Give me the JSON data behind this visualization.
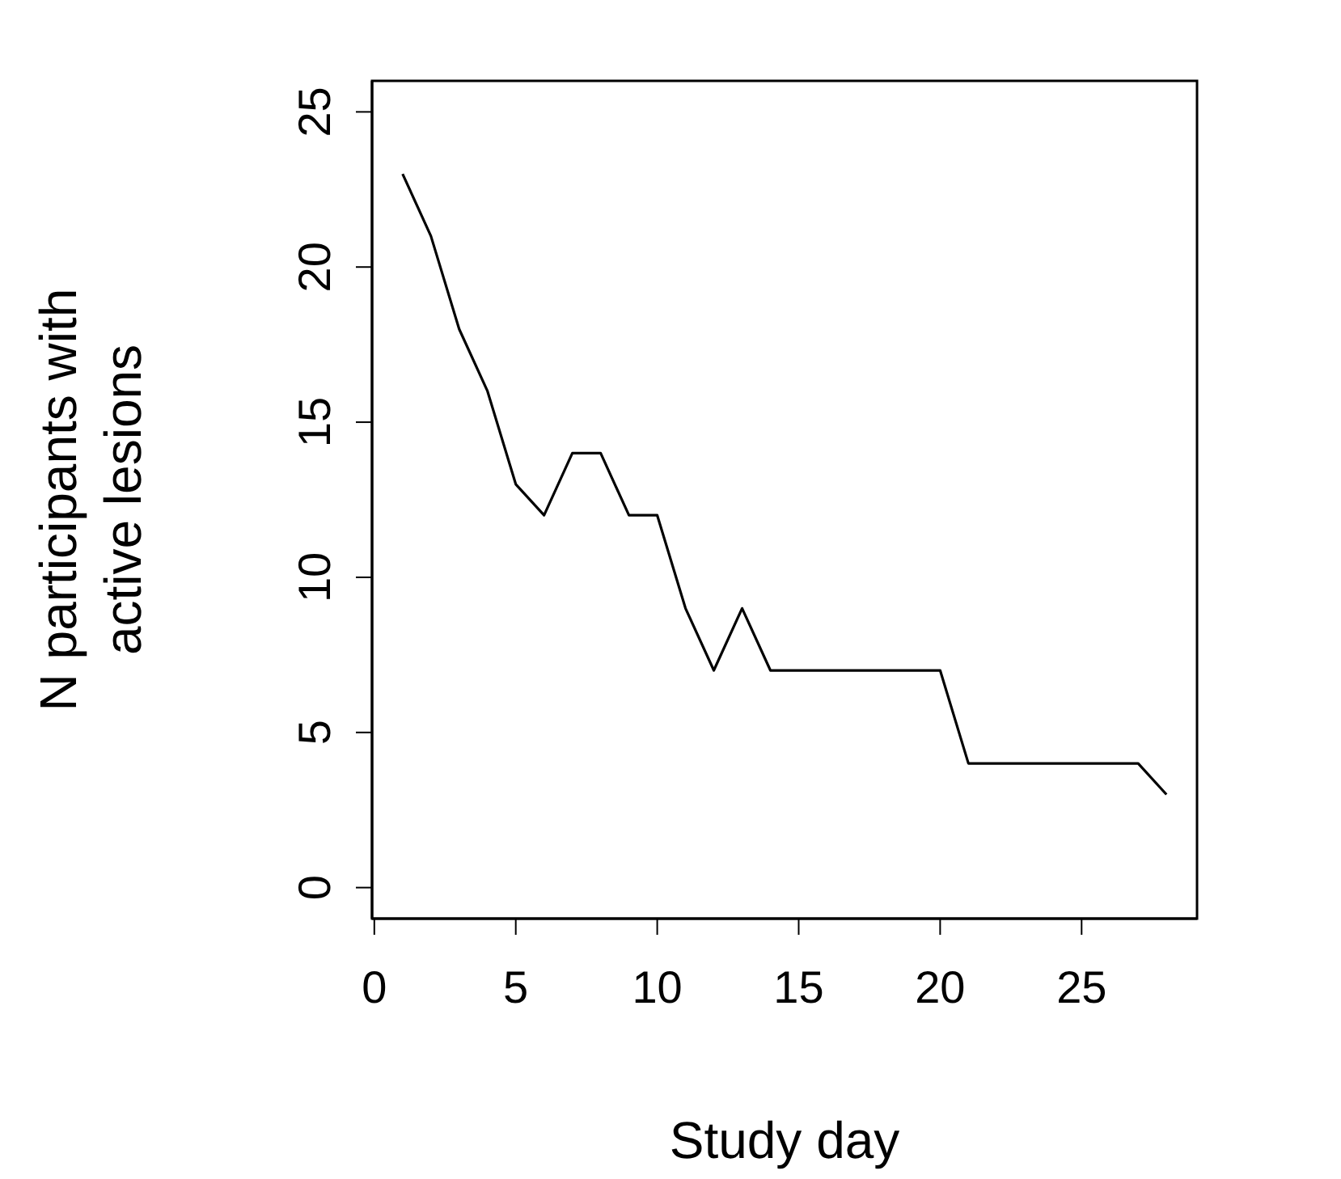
{
  "chart_data": {
    "type": "line",
    "xlabel": "Study day",
    "ylabel": "N participants with active lesions",
    "x": [
      1,
      2,
      3,
      4,
      5,
      6,
      7,
      8,
      9,
      10,
      11,
      12,
      13,
      14,
      15,
      16,
      17,
      18,
      19,
      20,
      21,
      22,
      23,
      24,
      25,
      26,
      27,
      28
    ],
    "series": [
      {
        "color": "#000000",
        "values": [
          23,
          21,
          18,
          16,
          13,
          12,
          14,
          14,
          12,
          12,
          9,
          7,
          9,
          7,
          7,
          7,
          7,
          7,
          7,
          7,
          4,
          4,
          4,
          4,
          4,
          4,
          4,
          3
        ]
      }
    ],
    "xlim": [
      -0.08,
      29.08
    ],
    "ylim": [
      -1,
      26
    ],
    "xticks": [
      0,
      5,
      10,
      15,
      20,
      25
    ],
    "yticks": [
      0,
      5,
      10,
      15,
      20,
      25
    ]
  }
}
